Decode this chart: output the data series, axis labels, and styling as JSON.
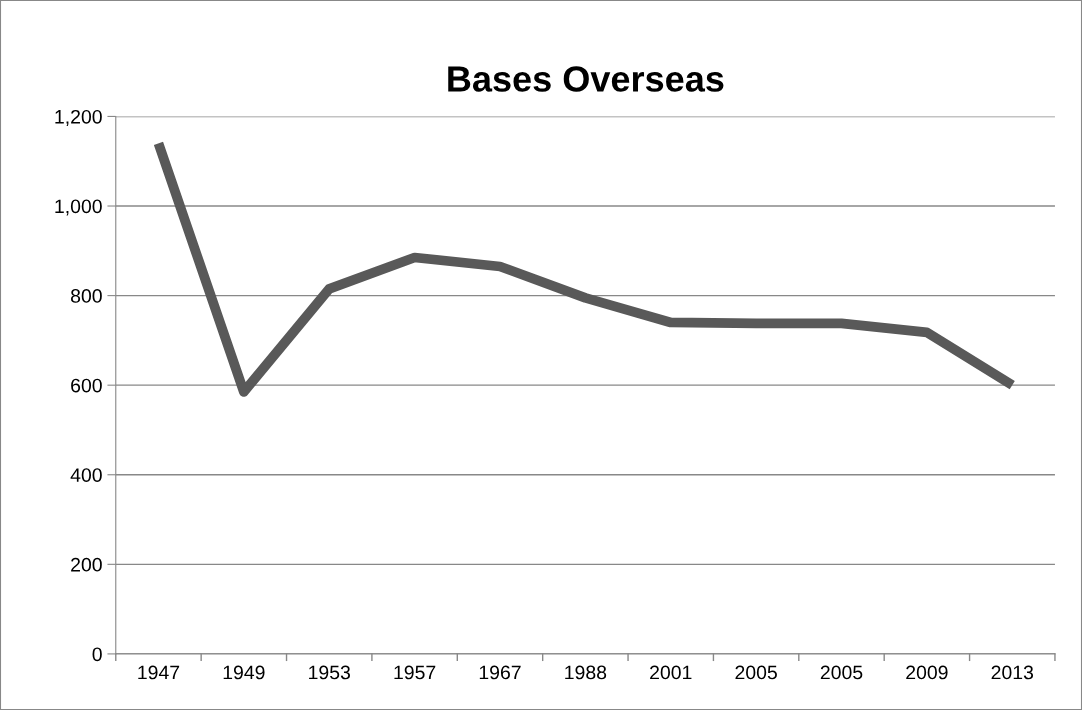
{
  "chart_data": {
    "type": "line",
    "title": "Bases Overseas",
    "categories": [
      "1947",
      "1949",
      "1953",
      "1957",
      "1967",
      "1988",
      "2001",
      "2005",
      "2005",
      "2009",
      "2013"
    ],
    "series": [
      {
        "color": "#595959",
        "values": [
          1140,
          585,
          815,
          885,
          865,
          795,
          740,
          738,
          738,
          718,
          600
        ]
      }
    ],
    "ylim": [
      0,
      1200
    ],
    "yticks": [
      0,
      200,
      400,
      600,
      800,
      {
        "value": 1000,
        "label": "1,000"
      },
      {
        "value": 1200,
        "label": "1,200"
      }
    ],
    "grid": "y",
    "legend": false,
    "marker": "none",
    "line_style": "solid"
  }
}
